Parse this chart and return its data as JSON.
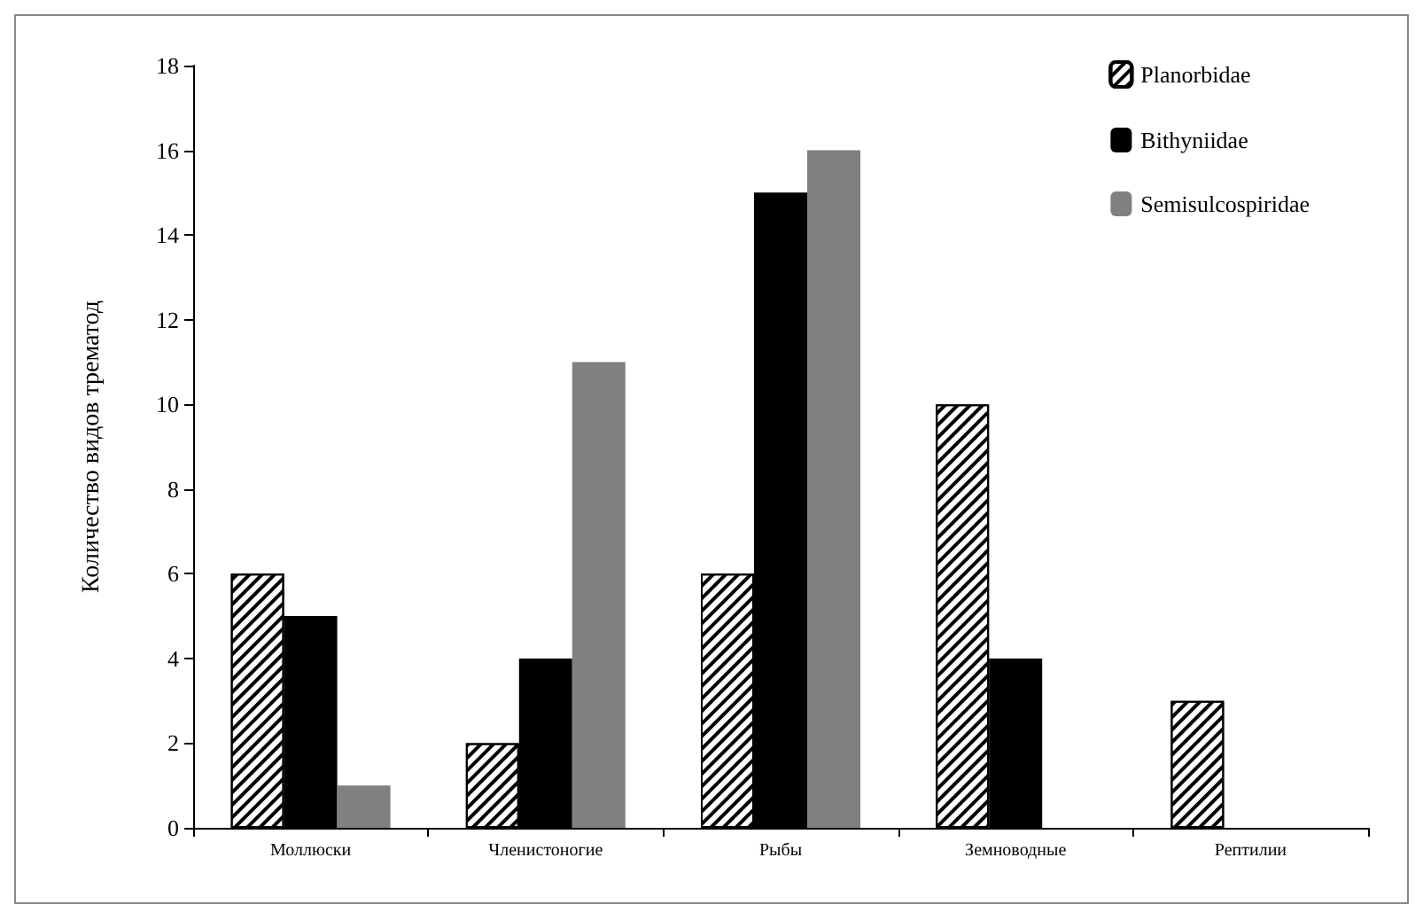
{
  "chart_data": {
    "type": "bar",
    "ylabel": "Количество видов трематод",
    "categories": [
      "Моллюски",
      "Членистоногие",
      "Рыбы",
      "Земноводные",
      "Рептилии"
    ],
    "series": [
      {
        "name": "Planorbidae",
        "color": "#ffffff",
        "values": [
          6,
          2,
          6,
          10,
          3
        ]
      },
      {
        "name": "Bithyniidae",
        "color": "#000000",
        "values": [
          5,
          4,
          15,
          4,
          0
        ]
      },
      {
        "name": "Semisulcospiridae",
        "color": "#808080",
        "values": [
          1,
          11,
          16,
          0,
          0
        ]
      }
    ],
    "ylim": [
      0,
      18
    ],
    "yticks": [
      0,
      2,
      4,
      6,
      8,
      10,
      12,
      14,
      16,
      18
    ],
    "grid": false,
    "legend": "top right"
  }
}
